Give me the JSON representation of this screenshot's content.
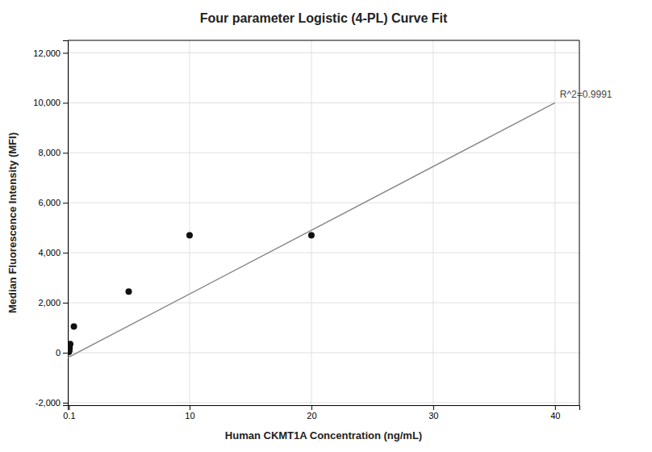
{
  "chart_data": {
    "type": "scatter",
    "title": "Four parameter Logistic (4-PL) Curve Fit",
    "x_label": "Human CKMT1A Concentration (ng/mL)",
    "y_label": "Median Fluorescence Intensity (MFI)",
    "annotation": "R^2=0.9991",
    "series": [
      {
        "type": "line",
        "color": "#888888",
        "x": [
          0.0,
          40
        ],
        "values": [
          -200,
          10000
        ]
      },
      {
        "type": "scatter",
        "color": "#111111",
        "x": [
          0.08,
          0.1,
          0.1,
          0.12,
          0.15,
          0.2,
          0.5,
          5,
          10,
          20
        ],
        "values": [
          30,
          50,
          80,
          120,
          200,
          350,
          1050,
          2450,
          4700,
          4700
        ]
      }
    ],
    "xlim": [
      0.0,
      42
    ],
    "ylim": [
      -2100,
      12500
    ],
    "xticks": [
      0.1,
      10,
      20,
      30,
      40
    ],
    "yticks": [
      {
        "value": -2000,
        "label": "-2,000"
      },
      0,
      {
        "value": 2000,
        "label": "2,000"
      },
      {
        "value": 4000,
        "label": "4,000"
      },
      {
        "value": 6000,
        "label": "6,000"
      },
      {
        "value": 8000,
        "label": "8,000"
      },
      {
        "value": 10000,
        "label": "10,000"
      },
      {
        "value": 12000,
        "label": "12,000"
      }
    ],
    "grid": true
  }
}
